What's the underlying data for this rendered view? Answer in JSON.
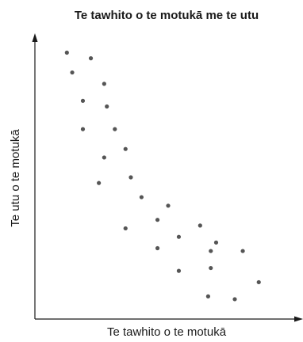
{
  "chart_data": {
    "type": "scatter",
    "title": "Te tawhito o te motukā me te utu",
    "x_label": "Te tawhito o te motukā",
    "y_label": "Te utu o te motukā",
    "xlim": [
      0,
      100
    ],
    "ylim": [
      0,
      100
    ],
    "color": "#555555",
    "x": [
      12,
      21,
      14,
      26,
      18,
      27,
      18,
      30,
      34,
      26,
      36,
      24,
      40,
      50,
      46,
      34,
      62,
      54,
      68,
      46,
      78,
      66,
      54,
      66,
      84,
      65,
      75
    ],
    "values": [
      94,
      92,
      87,
      83,
      77,
      75,
      67,
      67,
      60,
      57,
      50,
      48,
      43,
      40,
      35,
      32,
      33,
      29,
      27,
      25,
      24,
      24,
      17,
      18,
      13,
      8,
      7
    ]
  }
}
